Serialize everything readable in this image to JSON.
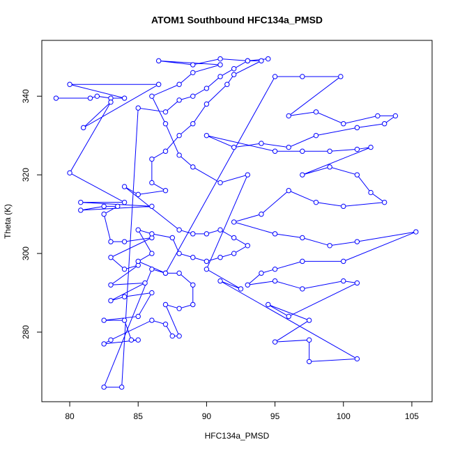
{
  "chart_data": {
    "type": "line",
    "title": "ATOM1 Southbound HFC134a_PMSD",
    "x_label": "HFC134a_PMSD",
    "y_label": "Theta (K)",
    "color": "#0000ff",
    "markers": true,
    "x": [
      79,
      81.5,
      82,
      83,
      84,
      80,
      86.5,
      81,
      83,
      80,
      84,
      80.8,
      86,
      80.8,
      82.5,
      83.5,
      82.5,
      83,
      84,
      86,
      83,
      84,
      85,
      83,
      85.5,
      83,
      84,
      86,
      85,
      82.5,
      84,
      84.5,
      85,
      82.5,
      83,
      86,
      87,
      87.5,
      88,
      87,
      88,
      89,
      89,
      88,
      87,
      86,
      82.5,
      83.8,
      85,
      87,
      88,
      89,
      90,
      91,
      92,
      93,
      94,
      92,
      91.5,
      90,
      89,
      88,
      87,
      86,
      86,
      87,
      85,
      84,
      88,
      89,
      90,
      91,
      92,
      93,
      92,
      91,
      90,
      89,
      88,
      87.5,
      86,
      85,
      86,
      85,
      87,
      95,
      97,
      99.8,
      96,
      98,
      100,
      102.5,
      103.8,
      103,
      101,
      98,
      96,
      94,
      92,
      90,
      95,
      97,
      99,
      101,
      102,
      97,
      99,
      101,
      102,
      103,
      100,
      98,
      96,
      94,
      92,
      95,
      97,
      99,
      101,
      105.3,
      100,
      97,
      95,
      94,
      93,
      95,
      97,
      100,
      101,
      96,
      94.5,
      97.5,
      95,
      97.5,
      97.5,
      101,
      91,
      92.5,
      90,
      93,
      91,
      89,
      88,
      87,
      86,
      88,
      89,
      91,
      86.5,
      89,
      91,
      93,
      94.5
    ],
    "values": [
      339.5,
      339.5,
      340,
      339.5,
      339.5,
      343,
      343,
      332,
      338.5,
      320.5,
      313,
      313,
      312,
      311,
      312,
      312,
      310,
      303,
      303,
      304,
      299,
      296,
      297,
      292,
      292.5,
      288,
      289,
      290,
      284,
      283,
      283,
      278,
      278,
      277,
      278,
      283,
      282,
      279,
      279,
      287,
      286,
      287,
      292,
      295,
      295,
      296,
      266,
      266,
      337,
      336,
      339,
      340,
      342,
      345,
      347,
      349,
      349,
      345.5,
      343,
      338,
      333,
      330,
      326,
      324,
      318,
      316,
      315,
      317,
      306,
      305,
      305,
      306,
      304,
      302,
      300,
      299,
      298,
      299,
      300,
      304,
      305,
      306,
      300,
      298,
      295,
      345,
      345,
      345,
      335,
      336,
      333,
      335,
      335,
      333,
      332,
      330,
      327,
      328,
      327,
      330,
      326,
      326,
      326,
      326.5,
      327,
      320,
      322,
      320,
      315.5,
      313,
      312,
      313,
      316,
      310,
      308,
      305,
      304,
      302,
      303,
      305.5,
      298,
      298,
      296,
      295,
      292,
      293,
      291,
      293,
      292.5,
      284,
      287,
      283,
      277.5,
      278,
      272.5,
      273.2,
      293,
      291,
      296,
      320,
      318,
      322,
      325,
      333,
      340,
      343,
      346,
      348,
      349,
      348,
      349.5,
      349,
      349.5
    ],
    "xlim": [
      77.96,
      106.48
    ],
    "ylim": [
      262.3,
      354.2
    ],
    "xticks": [
      80,
      85,
      90,
      95,
      100,
      105
    ],
    "yticks": [
      280,
      300,
      320,
      340
    ]
  }
}
